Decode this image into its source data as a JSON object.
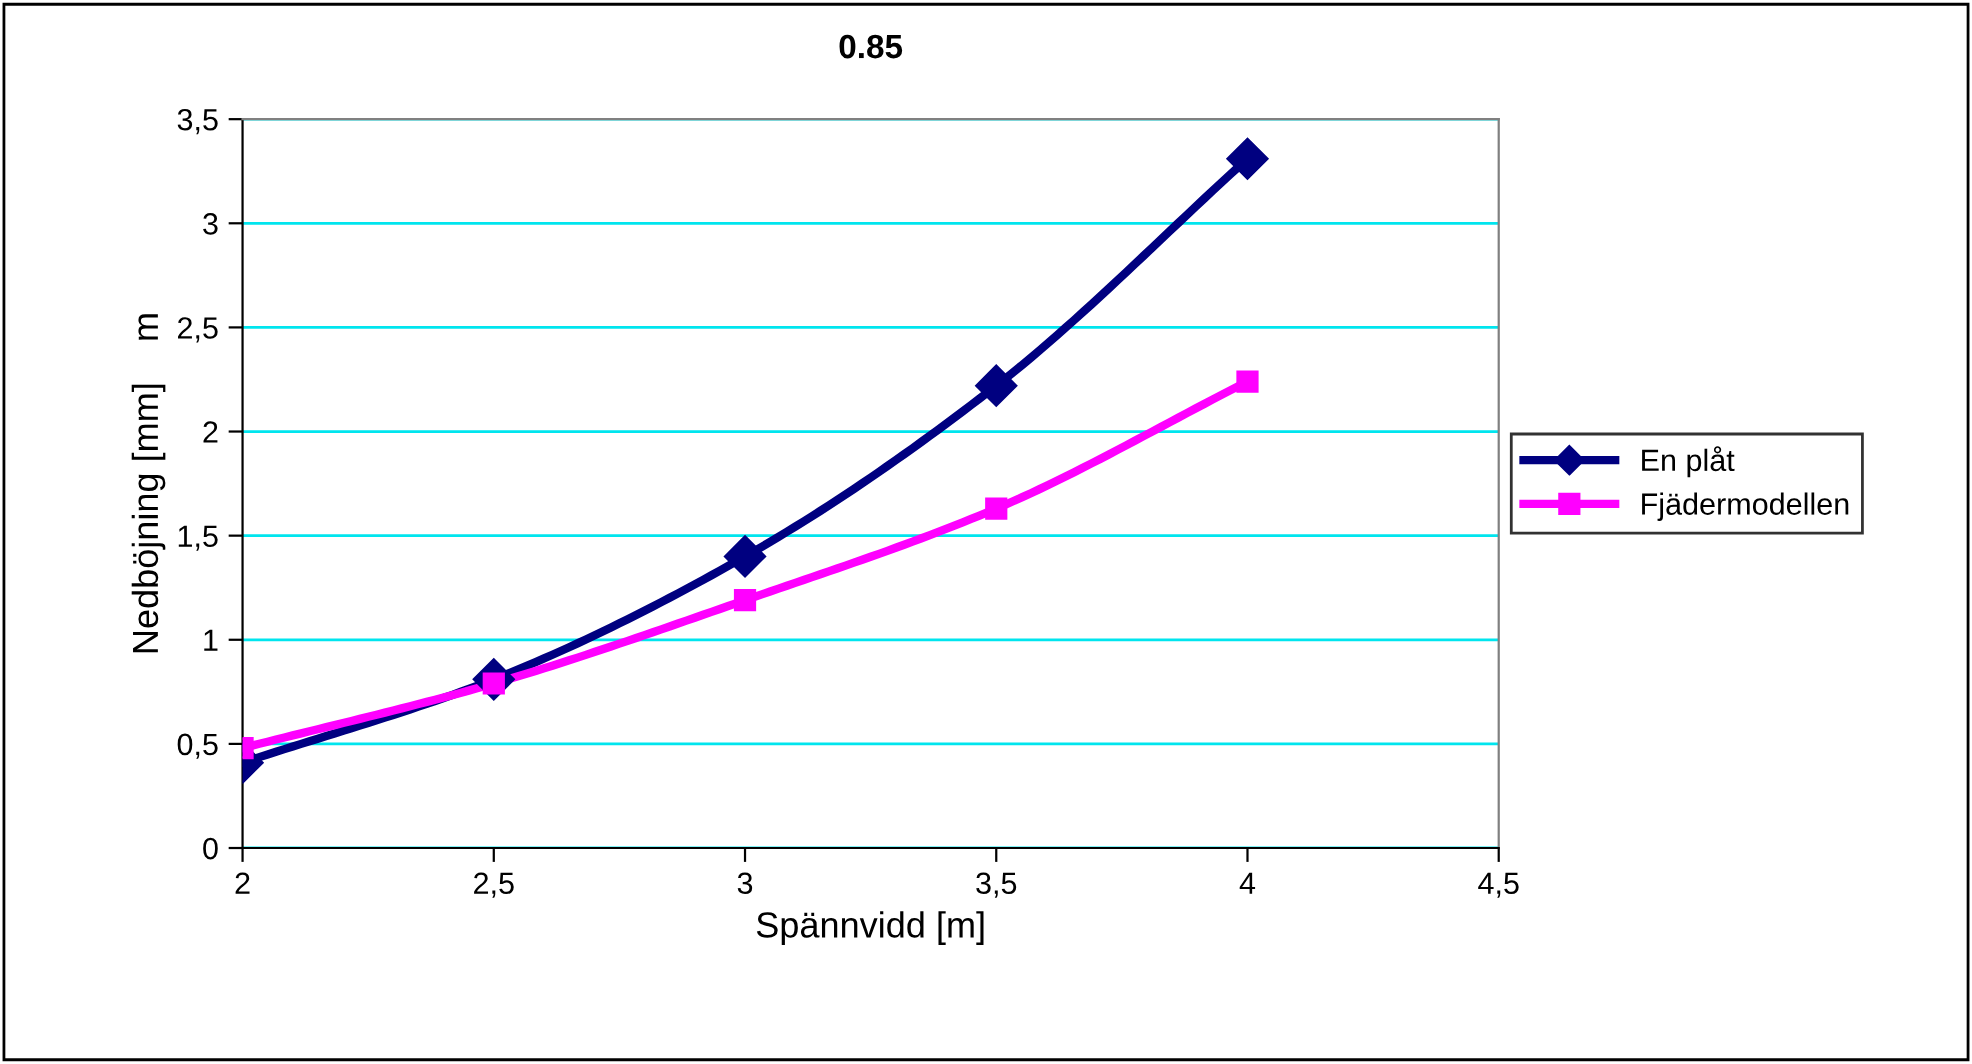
{
  "chart_data": {
    "type": "line",
    "title": "0.85",
    "xlabel": "Spännvidd [m]",
    "ylabel": "Nedböjning [mm]    m",
    "x": [
      2,
      2.5,
      3,
      3.5,
      4
    ],
    "series": [
      {
        "name": "En plåt",
        "color": "#000080",
        "marker": "diamond",
        "values": [
          0.41,
          0.81,
          1.4,
          2.22,
          3.31
        ]
      },
      {
        "name": "Fjädermodellen",
        "color": "#ff00ff",
        "marker": "square",
        "values": [
          0.48,
          0.79,
          1.19,
          1.63,
          2.24
        ]
      }
    ],
    "xlim": [
      2,
      4.5
    ],
    "xticks": [
      2,
      {
        "value": 2.5,
        "label": "2,5"
      },
      3,
      {
        "value": 3.5,
        "label": "3,5"
      },
      4,
      {
        "value": 4.5,
        "label": "4,5"
      }
    ],
    "ylim": [
      0,
      3.5
    ],
    "yticks": [
      0,
      {
        "value": 0.5,
        "label": "0,5"
      },
      1,
      {
        "value": 1.5,
        "label": "1,5"
      },
      2,
      {
        "value": 2.5,
        "label": "2,5"
      },
      3,
      {
        "value": 3.5,
        "label": "3,5"
      }
    ],
    "grid": "y",
    "legend": "right",
    "line_style": "solid"
  }
}
